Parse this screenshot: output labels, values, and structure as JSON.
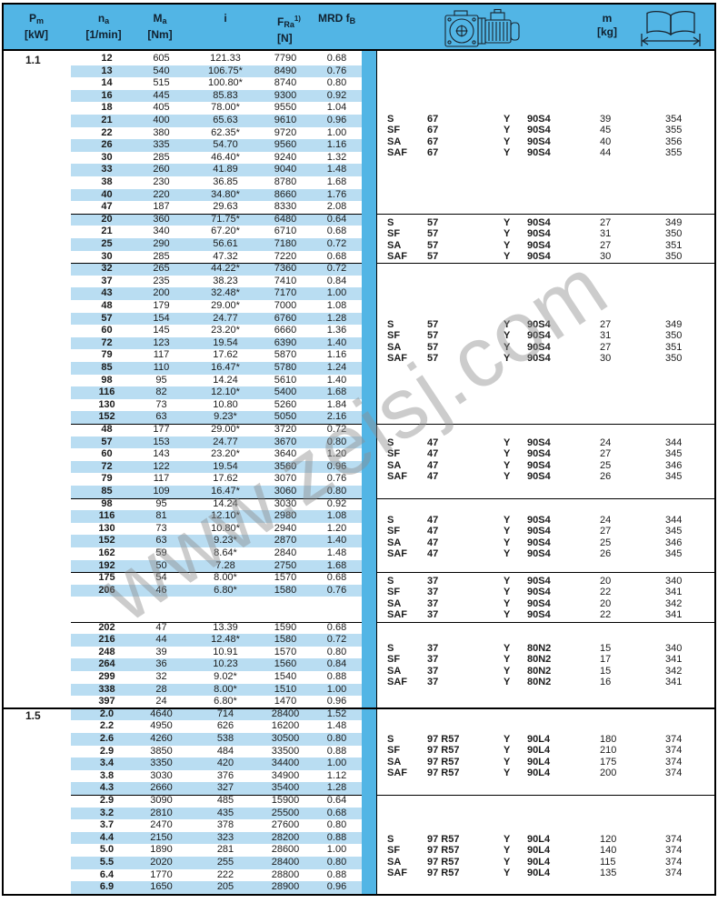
{
  "colors": {
    "header_blue": "#52b5e5",
    "stripe_blue": "#b9ddf2",
    "band_blue": "#52b5e5",
    "border_black": "#000000",
    "watermark_gray": "#8e8e8e"
  },
  "watermark": "www.zeisj.com",
  "header": {
    "pm": {
      "sym": "P",
      "sub": "m",
      "unit": "[kW]"
    },
    "na": {
      "sym": "n",
      "sub": "a",
      "unit": "[1/min]"
    },
    "ma": {
      "sym": "M",
      "sub": "a",
      "unit": "[Nm]"
    },
    "i": {
      "sym": "i"
    },
    "fra": {
      "sym": "F",
      "sub": "Ra",
      "sup": "1)",
      "unit": "[N]"
    },
    "mrd": {
      "sym": "MRD f",
      "sub": "B"
    },
    "m": {
      "sym": "m",
      "unit": "[kg]"
    },
    "icons": {
      "gearmotor": "gearmotor-drawing-icon",
      "book": "page-reference-book-icon"
    }
  },
  "blocks": [
    {
      "pm": "1.1",
      "divider_after": true,
      "rows": [
        [
          "12",
          "605",
          "121.33",
          "7790",
          "0.68"
        ],
        [
          "13",
          "540",
          "106.75*",
          "8490",
          "0.76"
        ],
        [
          "14",
          "515",
          "100.80*",
          "8740",
          "0.80"
        ],
        [
          "16",
          "445",
          "85.83",
          "9300",
          "0.92"
        ],
        [
          "18",
          "405",
          "78.00*",
          "9550",
          "1.04"
        ],
        [
          "21",
          "400",
          "65.63",
          "9610",
          "0.96"
        ],
        [
          "22",
          "380",
          "62.35*",
          "9720",
          "1.00"
        ],
        [
          "26",
          "335",
          "54.70",
          "9560",
          "1.16"
        ],
        [
          "30",
          "285",
          "46.40*",
          "9240",
          "1.32"
        ],
        [
          "33",
          "260",
          "41.89",
          "9040",
          "1.48"
        ],
        [
          "38",
          "230",
          "36.85",
          "8780",
          "1.68"
        ],
        [
          "40",
          "220",
          "34.80*",
          "8660",
          "1.76"
        ],
        [
          "47",
          "187",
          "29.63",
          "8330",
          "2.08"
        ]
      ]
    },
    {
      "divider_after": true,
      "rows": [
        [
          "20",
          "360",
          "71.75*",
          "6480",
          "0.64"
        ],
        [
          "21",
          "340",
          "67.20*",
          "6710",
          "0.68"
        ],
        [
          "25",
          "290",
          "56.61",
          "7180",
          "0.72"
        ],
        [
          "30",
          "285",
          "47.32",
          "7220",
          "0.68"
        ]
      ]
    },
    {
      "divider_after": true,
      "rows": [
        [
          "32",
          "265",
          "44.22*",
          "7360",
          "0.72"
        ],
        [
          "37",
          "235",
          "38.23",
          "7410",
          "0.84"
        ],
        [
          "43",
          "200",
          "32.48*",
          "7170",
          "1.00"
        ],
        [
          "48",
          "179",
          "29.00*",
          "7000",
          "1.08"
        ],
        [
          "57",
          "154",
          "24.77",
          "6760",
          "1.28"
        ],
        [
          "60",
          "145",
          "23.20*",
          "6660",
          "1.36"
        ],
        [
          "72",
          "123",
          "19.54",
          "6390",
          "1.40"
        ],
        [
          "79",
          "117",
          "17.62",
          "5870",
          "1.16"
        ],
        [
          "85",
          "110",
          "16.47*",
          "5780",
          "1.24"
        ],
        [
          "98",
          "95",
          "14.24",
          "5610",
          "1.40"
        ],
        [
          "116",
          "82",
          "12.10*",
          "5400",
          "1.68"
        ],
        [
          "130",
          "73",
          "10.80",
          "5260",
          "1.84"
        ],
        [
          "152",
          "63",
          "9.23*",
          "5050",
          "2.16"
        ]
      ]
    },
    {
      "divider_after": true,
      "rows": [
        [
          "48",
          "177",
          "29.00*",
          "3720",
          "0.72"
        ],
        [
          "57",
          "153",
          "24.77",
          "3670",
          "0.80"
        ],
        [
          "60",
          "143",
          "23.20*",
          "3640",
          "1.20"
        ],
        [
          "72",
          "122",
          "19.54",
          "3560",
          "0.96"
        ],
        [
          "79",
          "117",
          "17.62",
          "3070",
          "0.76"
        ],
        [
          "85",
          "109",
          "16.47*",
          "3060",
          "0.80"
        ]
      ]
    },
    {
      "divider_after": true,
      "rows": [
        [
          "98",
          "95",
          "14.24",
          "3030",
          "0.92"
        ],
        [
          "116",
          "81",
          "12.10*",
          "2980",
          "1.08"
        ],
        [
          "130",
          "73",
          "10.80*",
          "2940",
          "1.20"
        ],
        [
          "152",
          "63",
          "9.23*",
          "2870",
          "1.40"
        ],
        [
          "162",
          "59",
          "8.64*",
          "2840",
          "1.48"
        ],
        [
          "192",
          "50",
          "7.28",
          "2750",
          "1.68"
        ]
      ]
    },
    {
      "divider_after": false,
      "rows": [
        [
          "175",
          "54",
          "8.00*",
          "1570",
          "0.68"
        ],
        [
          "206",
          "46",
          "6.80*",
          "1580",
          "0.76"
        ]
      ]
    },
    {
      "gap_rows": 2,
      "divider_after": true
    },
    {
      "divider_after": true,
      "divider_full": true,
      "rows": [
        [
          "202",
          "47",
          "13.39",
          "1590",
          "0.68"
        ],
        [
          "216",
          "44",
          "12.48*",
          "1580",
          "0.72"
        ],
        [
          "248",
          "39",
          "10.91",
          "1570",
          "0.80"
        ],
        [
          "264",
          "36",
          "10.23",
          "1560",
          "0.84"
        ],
        [
          "299",
          "32",
          "9.02*",
          "1540",
          "0.88"
        ],
        [
          "338",
          "28",
          "8.00*",
          "1510",
          "1.00"
        ],
        [
          "397",
          "24",
          "6.80*",
          "1470",
          "0.96"
        ]
      ]
    },
    {
      "pm": "1.5",
      "divider_after": true,
      "rows": [
        [
          "2.0",
          "4640",
          "714",
          "28400",
          "1.52"
        ],
        [
          "2.2",
          "4950",
          "626",
          "16200",
          "1.48"
        ],
        [
          "2.6",
          "4260",
          "538",
          "30500",
          "0.80"
        ],
        [
          "2.9",
          "3850",
          "484",
          "33500",
          "0.88"
        ],
        [
          "3.4",
          "3350",
          "420",
          "34400",
          "1.00"
        ],
        [
          "3.8",
          "3030",
          "376",
          "34900",
          "1.12"
        ],
        [
          "4.3",
          "2660",
          "327",
          "35400",
          "1.28"
        ]
      ]
    },
    {
      "divider_after": false,
      "rows": [
        [
          "2.9",
          "3090",
          "485",
          "15900",
          "0.64"
        ],
        [
          "3.2",
          "2810",
          "435",
          "25500",
          "0.68"
        ],
        [
          "3.7",
          "2470",
          "378",
          "27600",
          "0.80"
        ],
        [
          "4.4",
          "2150",
          "323",
          "28200",
          "0.88"
        ],
        [
          "5.0",
          "1890",
          "281",
          "28600",
          "1.00"
        ],
        [
          "5.5",
          "2020",
          "255",
          "28400",
          "0.80"
        ],
        [
          "6.4",
          "1770",
          "222",
          "28800",
          "0.88"
        ],
        [
          "6.9",
          "1650",
          "205",
          "28900",
          "0.96"
        ]
      ]
    }
  ],
  "motor_groups": [
    {
      "rows": [
        [
          "S",
          "67",
          "Y",
          "90S4",
          "39",
          "354"
        ],
        [
          "SF",
          "67",
          "Y",
          "90S4",
          "45",
          "355"
        ],
        [
          "SA",
          "67",
          "Y",
          "90S4",
          "40",
          "356"
        ],
        [
          "SAF",
          "67",
          "Y",
          "90S4",
          "44",
          "355"
        ]
      ]
    },
    {
      "rows": [
        [
          "S",
          "57",
          "Y",
          "90S4",
          "27",
          "349"
        ],
        [
          "SF",
          "57",
          "Y",
          "90S4",
          "31",
          "350"
        ],
        [
          "SA",
          "57",
          "Y",
          "90S4",
          "27",
          "351"
        ],
        [
          "SAF",
          "57",
          "Y",
          "90S4",
          "30",
          "350"
        ]
      ]
    },
    {
      "rows": [
        [
          "S",
          "57",
          "Y",
          "90S4",
          "27",
          "349"
        ],
        [
          "SF",
          "57",
          "Y",
          "90S4",
          "31",
          "350"
        ],
        [
          "SA",
          "57",
          "Y",
          "90S4",
          "27",
          "351"
        ],
        [
          "SAF",
          "57",
          "Y",
          "90S4",
          "30",
          "350"
        ]
      ]
    },
    {
      "rows": [
        [
          "S",
          "47",
          "Y",
          "90S4",
          "24",
          "344"
        ],
        [
          "SF",
          "47",
          "Y",
          "90S4",
          "27",
          "345"
        ],
        [
          "SA",
          "47",
          "Y",
          "90S4",
          "25",
          "346"
        ],
        [
          "SAF",
          "47",
          "Y",
          "90S4",
          "26",
          "345"
        ]
      ]
    },
    {
      "rows": [
        [
          "S",
          "47",
          "Y",
          "90S4",
          "24",
          "344"
        ],
        [
          "SF",
          "47",
          "Y",
          "90S4",
          "27",
          "345"
        ],
        [
          "SA",
          "47",
          "Y",
          "90S4",
          "25",
          "346"
        ],
        [
          "SAF",
          "47",
          "Y",
          "90S4",
          "26",
          "345"
        ]
      ]
    },
    {
      "rows": [
        [
          "S",
          "37",
          "Y",
          "90S4",
          "20",
          "340"
        ],
        [
          "SF",
          "37",
          "Y",
          "90S4",
          "22",
          "341"
        ],
        [
          "SA",
          "37",
          "Y",
          "90S4",
          "20",
          "342"
        ],
        [
          "SAF",
          "37",
          "Y",
          "90S4",
          "22",
          "341"
        ]
      ]
    },
    {
      "rows": [
        [
          "S",
          "37",
          "Y",
          "80N2",
          "15",
          "340"
        ],
        [
          "SF",
          "37",
          "Y",
          "80N2",
          "17",
          "341"
        ],
        [
          "SA",
          "37",
          "Y",
          "80N2",
          "15",
          "342"
        ],
        [
          "SAF",
          "37",
          "Y",
          "80N2",
          "16",
          "341"
        ]
      ]
    },
    {
      "rows": [
        [
          "S",
          "97 R57",
          "Y",
          "90L4",
          "180",
          "374"
        ],
        [
          "SF",
          "97 R57",
          "Y",
          "90L4",
          "210",
          "374"
        ],
        [
          "SA",
          "97 R57",
          "Y",
          "90L4",
          "175",
          "374"
        ],
        [
          "SAF",
          "97 R57",
          "Y",
          "90L4",
          "200",
          "374"
        ]
      ]
    },
    {
      "rows": [
        [
          "S",
          "97 R57",
          "Y",
          "90L4",
          "120",
          "374"
        ],
        [
          "SF",
          "97 R57",
          "Y",
          "90L4",
          "140",
          "374"
        ],
        [
          "SA",
          "97 R57",
          "Y",
          "90L4",
          "115",
          "374"
        ],
        [
          "SAF",
          "97 R57",
          "Y",
          "90L4",
          "135",
          "374"
        ]
      ]
    }
  ]
}
